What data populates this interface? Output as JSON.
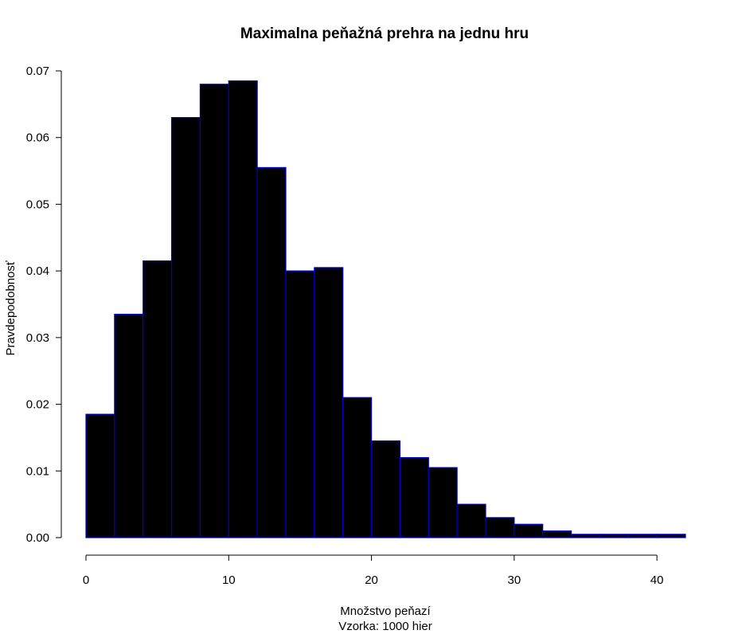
{
  "chart_data": {
    "type": "bar",
    "title": "Maximalna peňažná prehra na jednu hru",
    "xlabel": "Množstvo peňazí",
    "subtitle": "Vzorka: 1000 hier",
    "ylabel": "Pravdepodobnosť",
    "bins": [
      [
        0,
        2
      ],
      [
        2,
        4
      ],
      [
        4,
        6
      ],
      [
        6,
        8
      ],
      [
        8,
        10
      ],
      [
        10,
        12
      ],
      [
        12,
        14
      ],
      [
        14,
        16
      ],
      [
        16,
        18
      ],
      [
        18,
        20
      ],
      [
        20,
        22
      ],
      [
        22,
        24
      ],
      [
        24,
        26
      ],
      [
        26,
        28
      ],
      [
        28,
        30
      ],
      [
        30,
        32
      ],
      [
        32,
        34
      ],
      [
        34,
        36
      ],
      [
        36,
        38
      ],
      [
        38,
        40
      ],
      [
        40,
        42
      ]
    ],
    "values": [
      0.0185,
      0.0335,
      0.0415,
      0.063,
      0.068,
      0.0685,
      0.0555,
      0.04,
      0.0405,
      0.021,
      0.0145,
      0.012,
      0.0105,
      0.005,
      0.003,
      0.002,
      0.001,
      0.0005,
      0.0005,
      0.0005,
      0.0005
    ],
    "xlim": [
      0,
      42
    ],
    "ylim": [
      0,
      0.07
    ],
    "xticks": [
      0,
      10,
      20,
      30,
      40
    ],
    "yticks": [
      "0.00",
      "0.01",
      "0.02",
      "0.03",
      "0.04",
      "0.05",
      "0.06",
      "0.07"
    ],
    "bar_fill": "#000000",
    "bar_border": "#0000cd",
    "grid": false,
    "legend": "none"
  }
}
